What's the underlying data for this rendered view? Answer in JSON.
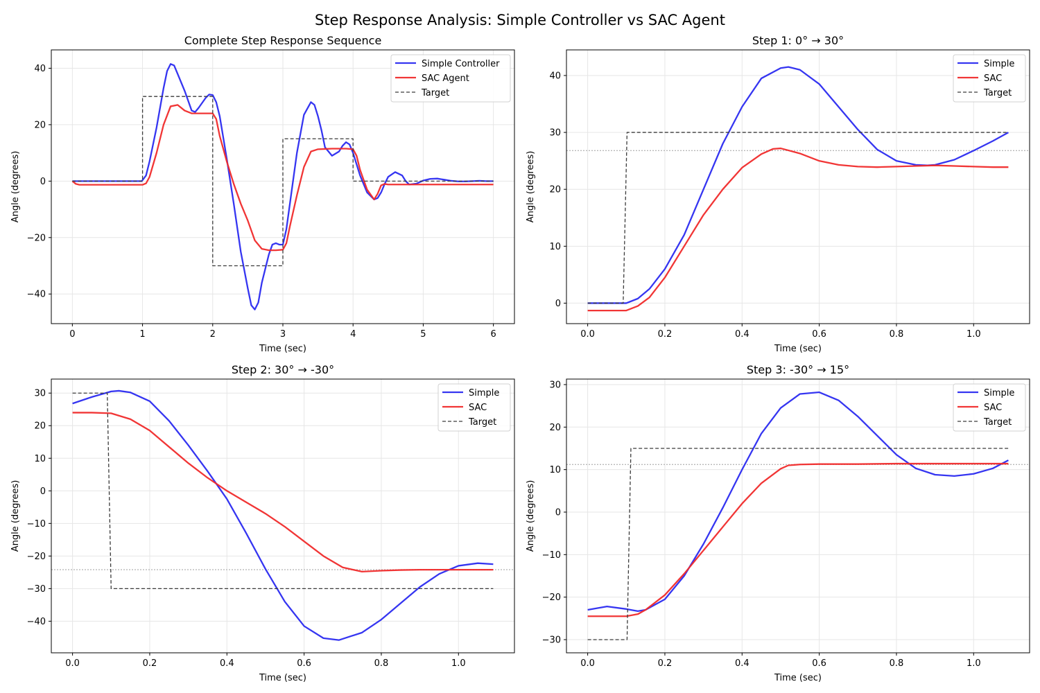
{
  "figure": {
    "title": "Step Response Analysis: Simple Controller vs SAC Agent"
  },
  "colors": {
    "simple": "#2a2af0",
    "sac": "#f02a2a",
    "target": "#3a3a3a",
    "reference": "#b8b8b8",
    "grid": "#e6e6e6"
  },
  "chart_data": [
    {
      "type": "line",
      "title": "Complete Step Response Sequence",
      "xlabel": "Time (sec)",
      "ylabel": "Angle (degrees)",
      "xlim": [
        -0.3,
        6.3
      ],
      "ylim": [
        -50.5,
        46.5
      ],
      "xticks": [
        0,
        1,
        2,
        3,
        4,
        5,
        6
      ],
      "xtick_labels": [
        "0",
        "1",
        "2",
        "3",
        "4",
        "5",
        "6"
      ],
      "yticks": [
        -40,
        -20,
        0,
        20,
        40
      ],
      "ytick_labels": [
        "−40",
        "−20",
        "0",
        "20",
        "40"
      ],
      "grid": true,
      "legend_position": "top-right",
      "series": [
        {
          "name": "Simple Controller",
          "role": "simple",
          "x": [
            0,
            0.5,
            0.99,
            1.05,
            1.1,
            1.2,
            1.3,
            1.35,
            1.4,
            1.45,
            1.5,
            1.6,
            1.7,
            1.75,
            1.8,
            1.9,
            1.95,
            2.0,
            2.05,
            2.1,
            2.2,
            2.3,
            2.4,
            2.5,
            2.55,
            2.6,
            2.65,
            2.7,
            2.8,
            2.85,
            2.9,
            2.95,
            3.0,
            3.05,
            3.1,
            3.2,
            3.3,
            3.4,
            3.45,
            3.5,
            3.55,
            3.6,
            3.7,
            3.8,
            3.85,
            3.9,
            3.95,
            4.0,
            4.05,
            4.1,
            4.2,
            4.3,
            4.35,
            4.4,
            4.45,
            4.5,
            4.6,
            4.7,
            4.75,
            4.8,
            4.9,
            5.0,
            5.1,
            5.2,
            5.3,
            5.4,
            5.5,
            5.6,
            5.7,
            5.8,
            5.9,
            6.0
          ],
          "y": [
            0,
            0,
            0,
            2,
            7,
            19,
            33,
            39,
            41.5,
            41,
            38,
            32,
            25,
            24.5,
            26,
            29.5,
            30.7,
            30.5,
            28,
            23,
            8,
            -8,
            -25,
            -38,
            -44,
            -45.5,
            -43,
            -36,
            -26,
            -22.5,
            -22,
            -22.5,
            -22.5,
            -17,
            -8,
            10,
            23.5,
            28,
            27,
            23,
            18,
            12,
            9,
            10.5,
            12.5,
            13.8,
            13,
            10,
            6,
            2,
            -4,
            -6.5,
            -6,
            -4,
            -1,
            1.5,
            3.2,
            2,
            0,
            -1.2,
            -0.9,
            0.2,
            0.8,
            0.9,
            0.5,
            0.1,
            -0.1,
            -0.1,
            0,
            0.1,
            0,
            0
          ]
        },
        {
          "name": "SAC Agent",
          "role": "sac",
          "x": [
            0,
            0.05,
            0.1,
            0.5,
            1.0,
            1.05,
            1.1,
            1.2,
            1.3,
            1.4,
            1.5,
            1.6,
            1.7,
            1.8,
            2.0,
            2.05,
            2.1,
            2.2,
            2.3,
            2.4,
            2.5,
            2.6,
            2.7,
            2.8,
            2.9,
            3.0,
            3.05,
            3.1,
            3.2,
            3.3,
            3.4,
            3.5,
            3.6,
            3.7,
            3.8,
            3.9,
            4.0,
            4.05,
            4.1,
            4.2,
            4.3,
            4.35,
            4.4,
            4.45,
            4.5,
            5.0,
            5.5,
            6.0
          ],
          "y": [
            0,
            -1,
            -1.3,
            -1.3,
            -1.3,
            -0.8,
            1.5,
            10,
            20,
            26.5,
            27,
            25,
            24,
            24,
            24,
            22,
            16,
            7,
            -1,
            -8,
            -14,
            -21,
            -24,
            -24.5,
            -24.5,
            -24.3,
            -22,
            -16,
            -5,
            5,
            10.5,
            11.3,
            11.4,
            11.5,
            11.5,
            11.5,
            11.3,
            9,
            4,
            -3,
            -6.5,
            -4.5,
            -1.5,
            -1,
            -1.2,
            -1.2,
            -1.2,
            -1.2
          ]
        },
        {
          "name": "Target",
          "role": "target",
          "x": [
            0,
            1,
            1,
            2,
            2,
            3,
            3,
            4,
            4,
            6
          ],
          "y": [
            0,
            0,
            30,
            30,
            -30,
            -30,
            15,
            15,
            0,
            0
          ]
        }
      ],
      "reference_line": null
    },
    {
      "type": "line",
      "title": "Step 1: 0° → 30°",
      "xlabel": "Time (sec)",
      "ylabel": "Angle (degrees)",
      "xlim": [
        -0.055,
        1.145
      ],
      "ylim": [
        -3.6,
        44.5
      ],
      "xticks": [
        0,
        0.2,
        0.4,
        0.6,
        0.8,
        1.0
      ],
      "xtick_labels": [
        "0.0",
        "0.2",
        "0.4",
        "0.6",
        "0.8",
        "1.0"
      ],
      "yticks": [
        0,
        10,
        20,
        30,
        40
      ],
      "ytick_labels": [
        "0",
        "10",
        "20",
        "30",
        "40"
      ],
      "grid": true,
      "legend_position": "top-right",
      "series": [
        {
          "name": "Simple",
          "role": "simple",
          "x": [
            0,
            0.05,
            0.1,
            0.13,
            0.16,
            0.2,
            0.25,
            0.3,
            0.35,
            0.4,
            0.45,
            0.5,
            0.52,
            0.55,
            0.6,
            0.65,
            0.7,
            0.75,
            0.8,
            0.85,
            0.88,
            0.9,
            0.95,
            1.0,
            1.05,
            1.09
          ],
          "y": [
            0,
            0,
            0,
            0.8,
            2.5,
            6,
            12,
            20,
            28,
            34.5,
            39.5,
            41.3,
            41.5,
            41,
            38.5,
            34.5,
            30.5,
            27,
            25,
            24.3,
            24.2,
            24.3,
            25.2,
            26.8,
            28.5,
            30
          ]
        },
        {
          "name": "SAC",
          "role": "sac",
          "x": [
            0,
            0.05,
            0.1,
            0.13,
            0.16,
            0.2,
            0.25,
            0.3,
            0.35,
            0.4,
            0.45,
            0.48,
            0.5,
            0.55,
            0.6,
            0.65,
            0.7,
            0.75,
            0.8,
            0.85,
            0.9,
            0.95,
            1.0,
            1.05,
            1.09
          ],
          "y": [
            -1.3,
            -1.3,
            -1.3,
            -0.5,
            1,
            4.5,
            10,
            15.5,
            20,
            23.8,
            26.2,
            27.1,
            27.2,
            26.3,
            25,
            24.3,
            24,
            23.9,
            24,
            24.1,
            24.2,
            24.1,
            24,
            23.9,
            23.9
          ]
        },
        {
          "name": "Target",
          "role": "target",
          "x": [
            0,
            0.092,
            0.102,
            1.09
          ],
          "y": [
            0,
            0,
            30,
            30
          ]
        }
      ],
      "reference_line": 26.8
    },
    {
      "type": "line",
      "title": "Step 2: 30° → -30°",
      "xlabel": "Time (sec)",
      "ylabel": "Angle (degrees)",
      "xlim": [
        -0.055,
        1.145
      ],
      "ylim": [
        -49.7,
        34.3
      ],
      "xticks": [
        0,
        0.2,
        0.4,
        0.6,
        0.8,
        1.0
      ],
      "xtick_labels": [
        "0.0",
        "0.2",
        "0.4",
        "0.6",
        "0.8",
        "1.0"
      ],
      "yticks": [
        -40,
        -30,
        -20,
        -10,
        0,
        10,
        20,
        30
      ],
      "ytick_labels": [
        "−40",
        "−30",
        "−20",
        "−10",
        "0",
        "10",
        "20",
        "30"
      ],
      "grid": true,
      "legend_position": "top-right",
      "series": [
        {
          "name": "Simple",
          "role": "simple",
          "x": [
            0,
            0.05,
            0.1,
            0.12,
            0.15,
            0.2,
            0.25,
            0.3,
            0.35,
            0.4,
            0.45,
            0.5,
            0.55,
            0.6,
            0.65,
            0.69,
            0.75,
            0.8,
            0.85,
            0.9,
            0.95,
            1.0,
            1.05,
            1.09
          ],
          "y": [
            26.8,
            28.8,
            30.5,
            30.7,
            30.2,
            27.5,
            21.5,
            14,
            6,
            -2.5,
            -13,
            -24,
            -34,
            -41.5,
            -45.2,
            -45.8,
            -43.5,
            -39.5,
            -34.5,
            -29.5,
            -25.5,
            -23,
            -22.2,
            -22.5
          ]
        },
        {
          "name": "SAC",
          "role": "sac",
          "x": [
            0,
            0.05,
            0.1,
            0.15,
            0.2,
            0.25,
            0.3,
            0.35,
            0.4,
            0.45,
            0.5,
            0.55,
            0.6,
            0.65,
            0.7,
            0.75,
            0.8,
            0.85,
            0.9,
            0.95,
            1.0,
            1.05,
            1.09
          ],
          "y": [
            24,
            24,
            23.8,
            22,
            18.5,
            13.5,
            8.5,
            4,
            0,
            -3.5,
            -7,
            -11,
            -15.5,
            -20,
            -23.5,
            -24.8,
            -24.5,
            -24.3,
            -24.2,
            -24.2,
            -24.2,
            -24.2,
            -24.2
          ]
        },
        {
          "name": "Target",
          "role": "target",
          "x": [
            0,
            0.09,
            0.1,
            1.09
          ],
          "y": [
            30,
            30,
            -30,
            -30
          ]
        }
      ],
      "reference_line": -24.2
    },
    {
      "type": "line",
      "title": "Step 3: -30° → 15°",
      "xlabel": "Time (sec)",
      "ylabel": "Angle (degrees)",
      "xlim": [
        -0.055,
        1.145
      ],
      "ylim": [
        -33.1,
        31.3
      ],
      "xticks": [
        0,
        0.2,
        0.4,
        0.6,
        0.8,
        1.0
      ],
      "xtick_labels": [
        "0.0",
        "0.2",
        "0.4",
        "0.6",
        "0.8",
        "1.0"
      ],
      "yticks": [
        -30,
        -20,
        -10,
        0,
        10,
        20,
        30
      ],
      "ytick_labels": [
        "−30",
        "−20",
        "−10",
        "0",
        "10",
        "20",
        "30"
      ],
      "grid": true,
      "legend_position": "top-right",
      "series": [
        {
          "name": "Simple",
          "role": "simple",
          "x": [
            0,
            0.05,
            0.1,
            0.13,
            0.15,
            0.2,
            0.25,
            0.3,
            0.35,
            0.4,
            0.45,
            0.5,
            0.55,
            0.6,
            0.65,
            0.7,
            0.75,
            0.8,
            0.85,
            0.9,
            0.95,
            1.0,
            1.05,
            1.09
          ],
          "y": [
            -23,
            -22.2,
            -22.8,
            -23.3,
            -23,
            -20.5,
            -15,
            -7.5,
            1,
            10,
            18.5,
            24.5,
            27.8,
            28.2,
            26.3,
            22.5,
            18,
            13.5,
            10.3,
            8.8,
            8.5,
            9,
            10.3,
            12.2
          ]
        },
        {
          "name": "SAC",
          "role": "sac",
          "x": [
            0,
            0.05,
            0.1,
            0.13,
            0.15,
            0.2,
            0.25,
            0.3,
            0.35,
            0.4,
            0.45,
            0.5,
            0.52,
            0.55,
            0.6,
            0.7,
            0.8,
            0.9,
            1.0,
            1.09
          ],
          "y": [
            -24.5,
            -24.5,
            -24.5,
            -24,
            -23,
            -19.5,
            -14.5,
            -9,
            -3.5,
            2,
            6.8,
            10.2,
            11,
            11.2,
            11.3,
            11.3,
            11.4,
            11.4,
            11.4,
            11.4
          ]
        },
        {
          "name": "Target",
          "role": "target",
          "x": [
            0,
            0.102,
            0.112,
            1.09
          ],
          "y": [
            -30,
            -30,
            15,
            15
          ]
        }
      ],
      "reference_line": 11.2
    }
  ]
}
